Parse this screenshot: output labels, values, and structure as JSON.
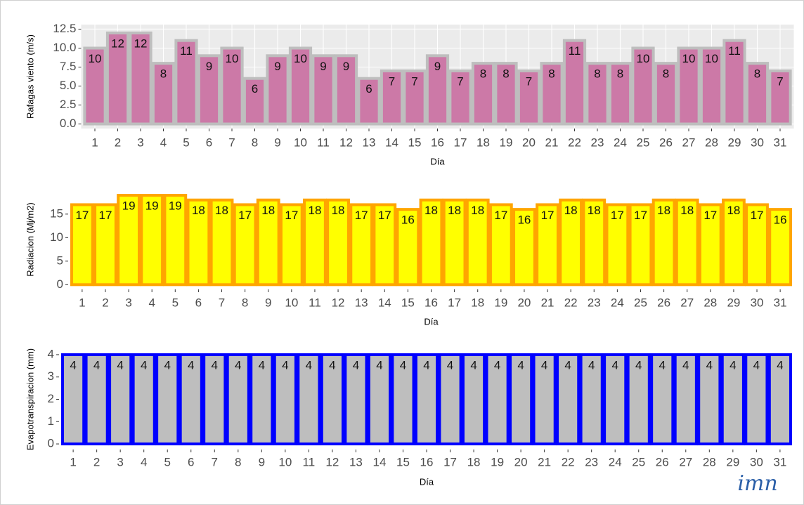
{
  "chart_data": [
    {
      "type": "bar",
      "ylabel": "Rafagas viento (m/s)",
      "xlabel": "Día",
      "categories": [
        "1",
        "2",
        "3",
        "4",
        "5",
        "6",
        "7",
        "8",
        "9",
        "10",
        "11",
        "12",
        "13",
        "14",
        "15",
        "16",
        "17",
        "18",
        "19",
        "20",
        "21",
        "22",
        "23",
        "24",
        "25",
        "26",
        "27",
        "28",
        "29",
        "30",
        "31"
      ],
      "values": [
        10,
        12,
        12,
        8,
        11,
        9,
        10,
        6,
        9,
        10,
        9,
        9,
        6,
        7,
        7,
        9,
        7,
        8,
        8,
        7,
        8,
        11,
        8,
        8,
        10,
        8,
        10,
        10,
        11,
        8,
        7
      ],
      "color": "#cc79a7",
      "edgecolor": "#bebebe",
      "grid": true,
      "ylim": [
        -0.6,
        13.1
      ],
      "yticks": [
        {
          "value": 0,
          "label": "0.0"
        },
        2.5,
        {
          "value": 5,
          "label": "5.0"
        },
        7.5,
        {
          "value": 10,
          "label": "10.0"
        },
        12.5
      ]
    },
    {
      "type": "bar",
      "ylabel": "Radiacion (Mj/m2)",
      "xlabel": "Día",
      "categories": [
        "1",
        "2",
        "3",
        "4",
        "5",
        "6",
        "7",
        "8",
        "9",
        "10",
        "11",
        "12",
        "13",
        "14",
        "15",
        "16",
        "17",
        "18",
        "19",
        "20",
        "21",
        "22",
        "23",
        "24",
        "25",
        "26",
        "27",
        "28",
        "29",
        "30",
        "31"
      ],
      "values": [
        17,
        17,
        19,
        19,
        19,
        18,
        18,
        17,
        18,
        17,
        18,
        18,
        17,
        17,
        16,
        18,
        18,
        18,
        17,
        16,
        17,
        18,
        18,
        17,
        17,
        18,
        18,
        17,
        18,
        17,
        16
      ],
      "color": "#ffff00",
      "edgecolor": "#ffa500",
      "grid": false,
      "ylim": [
        -1,
        20.2
      ],
      "yticks": [
        0,
        5,
        10,
        15
      ]
    },
    {
      "type": "bar",
      "ylabel": "Evapotranspiracion (mm)",
      "xlabel": "Día",
      "categories": [
        "1",
        "2",
        "3",
        "4",
        "5",
        "6",
        "7",
        "8",
        "9",
        "10",
        "11",
        "12",
        "13",
        "14",
        "15",
        "16",
        "17",
        "18",
        "19",
        "20",
        "21",
        "22",
        "23",
        "24",
        "25",
        "26",
        "27",
        "28",
        "29",
        "30",
        "31"
      ],
      "values": [
        4,
        4,
        4,
        4,
        4,
        4,
        4,
        4,
        4,
        4,
        4,
        4,
        4,
        4,
        4,
        4,
        4,
        4,
        4,
        4,
        4,
        4,
        4,
        4,
        4,
        4,
        4,
        4,
        4,
        4,
        4
      ],
      "color": "#bebebe",
      "edgecolor": "#0000ff",
      "grid": false,
      "ylim": [
        -0.25,
        4.25
      ],
      "yticks": [
        0,
        1,
        2,
        3,
        4
      ]
    }
  ],
  "logo": "imn"
}
